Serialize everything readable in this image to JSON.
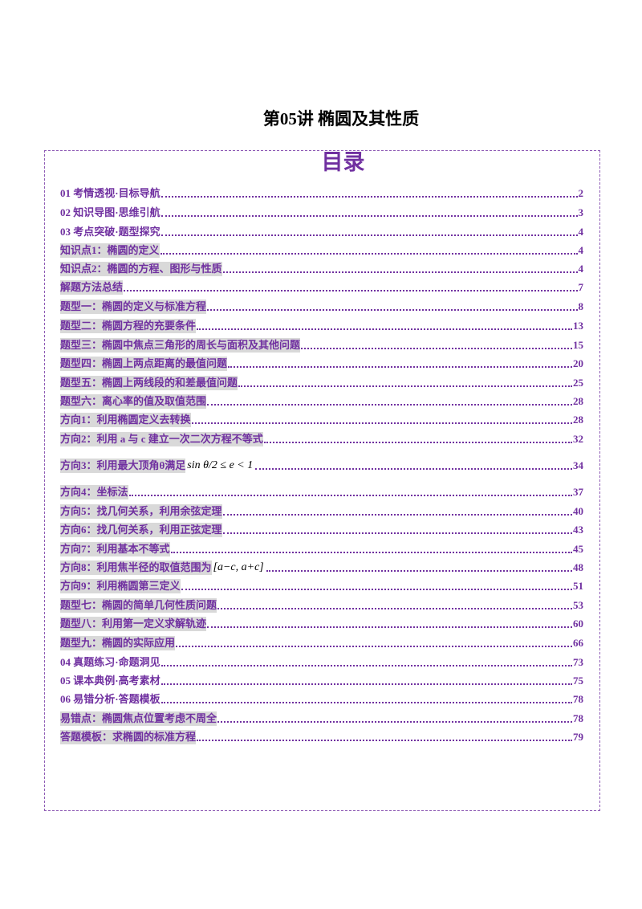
{
  "title": "第05讲 椭圆及其性质",
  "toc": {
    "heading": "目录",
    "entries": [
      {
        "text": "01 考情透视·目标导航",
        "page": "2",
        "highlight": false
      },
      {
        "text": "02 知识导图·思维引航",
        "page": "3",
        "highlight": false
      },
      {
        "text": "03 考点突破·题型探究",
        "page": "4",
        "highlight": false
      },
      {
        "text": "知识点1：椭圆的定义",
        "page": "4",
        "highlight": true
      },
      {
        "text": "知识点2：椭圆的方程、图形与性质",
        "page": "4",
        "highlight": true
      },
      {
        "text": "解题方法总结",
        "page": "7",
        "highlight": true
      },
      {
        "text": "题型一：椭圆的定义与标准方程",
        "page": "8",
        "highlight": true
      },
      {
        "text": "题型二：椭圆方程的充要条件",
        "page": "13",
        "highlight": true
      },
      {
        "text": "题型三：椭圆中焦点三角形的周长与面积及其他问题",
        "page": "15",
        "highlight": true
      },
      {
        "text": "题型四：椭圆上两点距离的最值问题",
        "page": "20",
        "highlight": true
      },
      {
        "text": "题型五：椭圆上两线段的和差最值问题",
        "page": "25",
        "highlight": true
      },
      {
        "text": "题型六：离心率的值及取值范围",
        "page": "28",
        "highlight": true
      },
      {
        "text": "方向1：利用椭圆定义去转换",
        "page": "28",
        "highlight": true
      },
      {
        "text": "方向2：利用 a 与 c 建立一次二次方程不等式",
        "page": "32",
        "highlight": true
      },
      {
        "text": "方向3：利用最大顶角θ满足",
        "formula": "sin θ/2 ≤ e < 1",
        "page": "34",
        "highlight": true
      },
      {
        "text": "方向4：坐标法",
        "page": "37",
        "highlight": true
      },
      {
        "text": "方向5：找几何关系，利用余弦定理",
        "page": "40",
        "highlight": true
      },
      {
        "text": "方向6：找几何关系，利用正弦定理",
        "page": "43",
        "highlight": true
      },
      {
        "text": "方向7：利用基本不等式",
        "page": "45",
        "highlight": true
      },
      {
        "text": "方向8：利用焦半径的取值范围为",
        "formula": "[a−c, a+c]",
        "page": "48",
        "highlight": true
      },
      {
        "text": "方向9：利用椭圆第三定义",
        "page": "51",
        "highlight": true
      },
      {
        "text": "题型七：椭圆的简单几何性质问题",
        "page": "53",
        "highlight": true
      },
      {
        "text": "题型八：利用第一定义求解轨迹",
        "page": "60",
        "highlight": true
      },
      {
        "text": "题型九：椭圆的实际应用",
        "page": "66",
        "highlight": true
      },
      {
        "text": "04 真题练习·命题洞见",
        "page": "73",
        "highlight": false
      },
      {
        "text": "05 课本典例·高考素材",
        "page": "75",
        "highlight": false
      },
      {
        "text": "06 易错分析·答题模板",
        "page": "78",
        "highlight": false
      },
      {
        "text": "易错点：椭圆焦点位置考虑不周全",
        "page": "78",
        "highlight": true
      },
      {
        "text": "答题模板：求椭圆的标准方程",
        "page": "79",
        "highlight": true
      }
    ]
  }
}
